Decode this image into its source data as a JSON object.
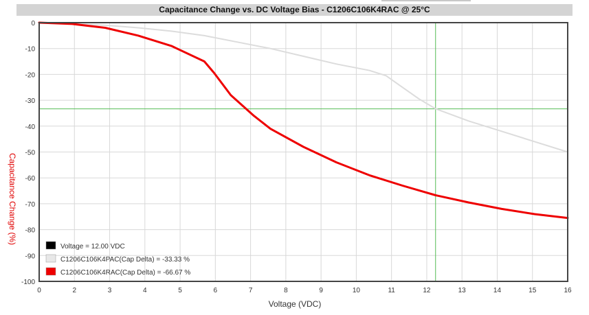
{
  "chart_data": {
    "type": "line",
    "title": "Capacitance Change vs. DC Voltage Bias - C1206C106K4RAC @ 25°C",
    "xlabel": "Voltage (VDC)",
    "ylabel": "Capacitance Change (%)",
    "xlim": [
      0,
      16
    ],
    "ylim": [
      -100,
      0
    ],
    "xticks": [
      "0",
      "2",
      "3",
      "4",
      "5",
      "6",
      "7",
      "8",
      "9",
      "10",
      "11",
      "12",
      "13",
      "14",
      "15",
      "16"
    ],
    "yticks": [
      "0",
      "-10",
      "-20",
      "-30",
      "-40",
      "-50",
      "-60",
      "-70",
      "-80",
      "-90",
      "-100"
    ],
    "grid": true,
    "legend_position": "bottom-left",
    "crosshair": {
      "x": 12.0,
      "y": -33.33
    },
    "legend": [
      {
        "label": "Voltage = 12.00 VDC",
        "color": "#000000"
      },
      {
        "label": "C1206C106K4PAC(Cap Delta) = -33.33 %",
        "color": "#e8e8e8"
      },
      {
        "label": "C1206C106K4RAC(Cap Delta) = -66.67 %",
        "color": "#ee0000"
      }
    ],
    "series": [
      {
        "name": "C1206C106K4PAC",
        "color": "#dcdcdc",
        "x": [
          0,
          1,
          2,
          3,
          4,
          5,
          6,
          7,
          8,
          9,
          10,
          10.5,
          11,
          11.5,
          12,
          13,
          14,
          15,
          16
        ],
        "y": [
          0,
          -0.5,
          -1,
          -2,
          -3.3,
          -5,
          -7.5,
          -10,
          -13,
          -16,
          -18.5,
          -20.5,
          -25,
          -29.5,
          -33.3,
          -38,
          -42,
          -46,
          -50
        ]
      },
      {
        "name": "C1206C106K4RAC",
        "color": "#ee0000",
        "x": [
          0,
          1,
          2,
          3,
          4,
          5,
          5.3,
          5.8,
          6.5,
          7,
          8,
          9,
          10,
          11,
          12,
          13,
          14,
          15,
          16
        ],
        "y": [
          0,
          -0.5,
          -2,
          -5,
          -9,
          -15,
          -19.5,
          -28,
          -36,
          -41,
          -48,
          -54,
          -59,
          -63,
          -66.7,
          -69.5,
          -72,
          -74,
          -75.5
        ]
      }
    ]
  }
}
